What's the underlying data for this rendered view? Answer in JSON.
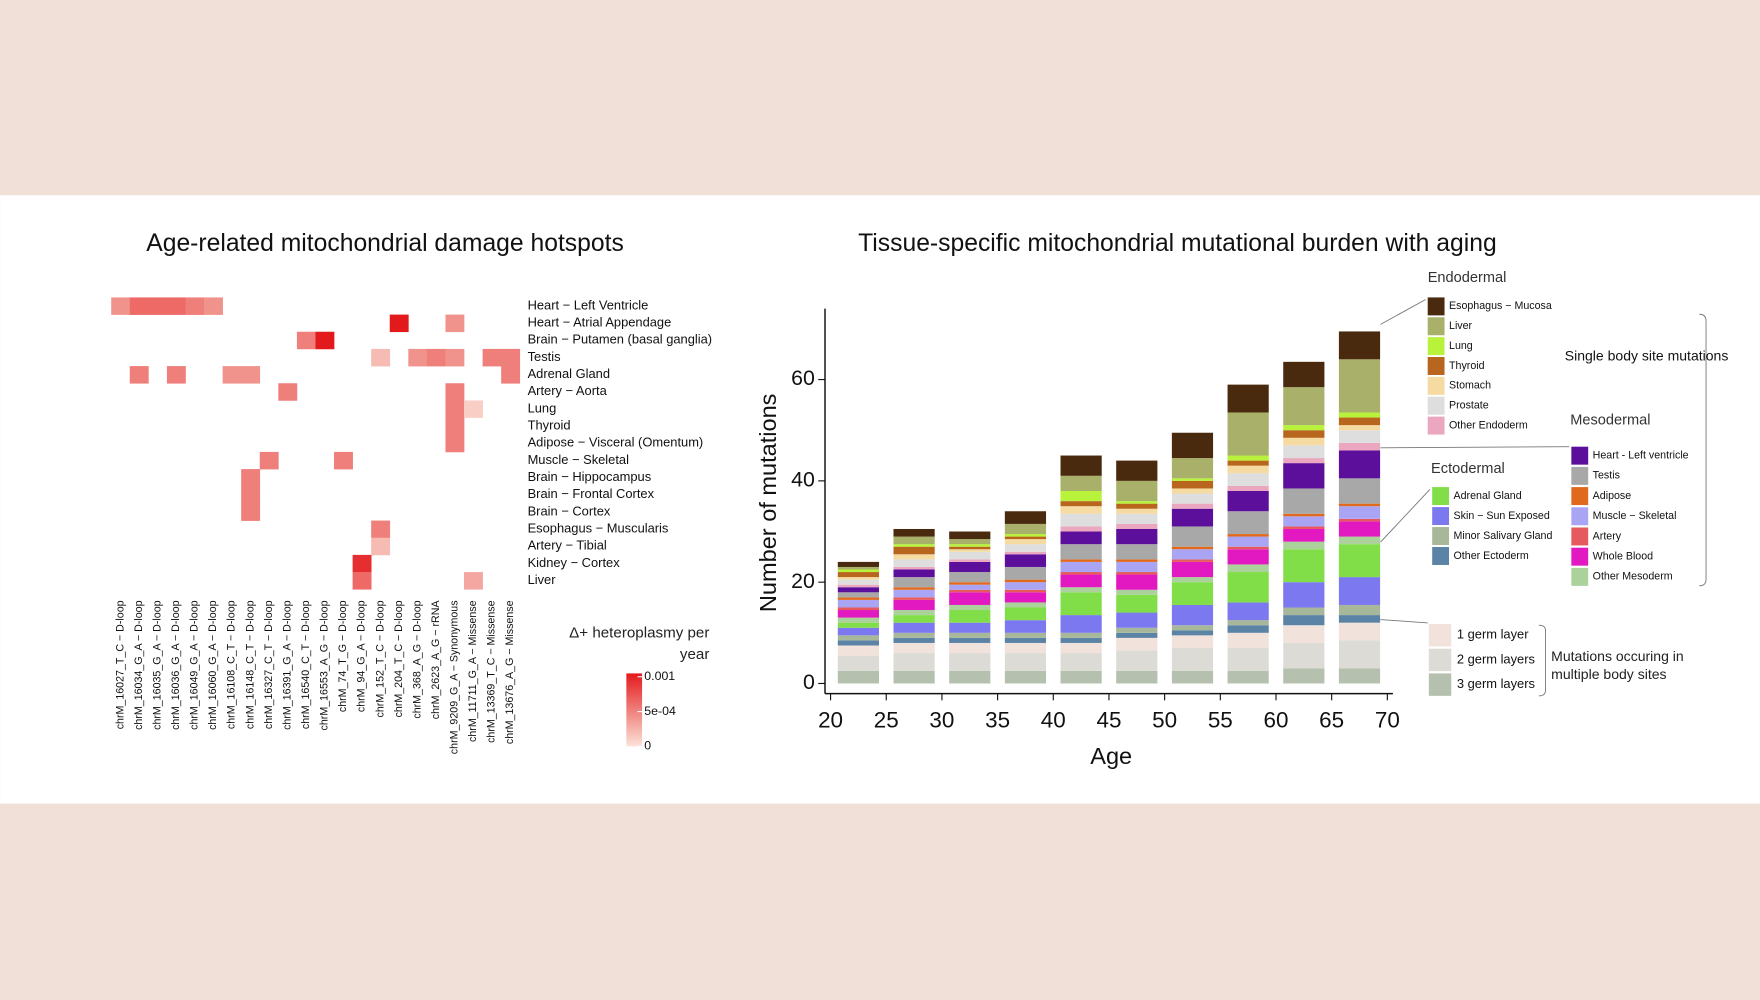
{
  "chart_data": [
    {
      "type": "heatmap",
      "title": "Age-related mitochondrial damage hotspots",
      "rows": [
        "Heart − Left Ventricle",
        "Heart − Atrial Appendage",
        "Brain − Putamen (basal ganglia)",
        "Testis",
        "Adrenal Gland",
        "Artery − Aorta",
        "Lung",
        "Thyroid",
        "Adipose − Visceral (Omentum)",
        "Muscle − Skeletal",
        "Brain − Hippocampus",
        "Brain − Frontal Cortex",
        "Brain − Cortex",
        "Esophagus − Muscularis",
        "Artery − Tibial",
        "Kidney − Cortex",
        "Liver"
      ],
      "columns": [
        "chrM_16027_T_C − D-loop",
        "chrM_16034_G_A − D-loop",
        "chrM_16035_G_A − D-loop",
        "chrM_16036_G_A − D-loop",
        "chrM_16049_G_A − D-loop",
        "chrM_16060_G_A − D-loop",
        "chrM_16108_C_T − D-loop",
        "chrM_16148_C_T − D-loop",
        "chrM_16327_C_T − D-loop",
        "chrM_16391_G_A − D-loop",
        "chrM_16540_C_T − D-loop",
        "chrM_16553_A_G − D-loop",
        "chrM_74_T_G − D-loop",
        "chrM_94_G_A − D-loop",
        "chrM_152_T_C − D-loop",
        "chrM_204_T_C − D-loop",
        "chrM_368_A_G − D-loop",
        "chrM_2623_A_G − rRNA",
        "chrM_9209_G_A − Synonymous",
        "chrM_11711_G_A − Missense",
        "chrM_13369_T_C − Missense",
        "chrM_13676_A_G − Missense"
      ],
      "values": [
        [
          0.0004,
          0.0006,
          0.0006,
          0.0006,
          0.0005,
          0.0004,
          null,
          null,
          null,
          null,
          null,
          null,
          null,
          null,
          null,
          null,
          null,
          null,
          null,
          null,
          null,
          null
        ],
        [
          null,
          null,
          null,
          null,
          null,
          null,
          null,
          null,
          null,
          null,
          null,
          null,
          null,
          null,
          null,
          0.001,
          null,
          null,
          0.0004,
          null,
          null,
          null
        ],
        [
          null,
          null,
          null,
          null,
          null,
          null,
          null,
          null,
          null,
          null,
          0.0005,
          0.001,
          null,
          null,
          null,
          null,
          null,
          null,
          null,
          null,
          null,
          null
        ],
        [
          null,
          null,
          null,
          null,
          null,
          null,
          null,
          null,
          null,
          null,
          null,
          null,
          null,
          null,
          0.0002,
          null,
          0.0004,
          0.0005,
          0.0004,
          null,
          0.0005,
          0.0005
        ],
        [
          null,
          0.0005,
          null,
          0.0005,
          null,
          null,
          0.0004,
          0.0004,
          null,
          null,
          null,
          null,
          null,
          null,
          null,
          null,
          null,
          null,
          null,
          null,
          null,
          0.0005
        ],
        [
          null,
          null,
          null,
          null,
          null,
          null,
          null,
          null,
          null,
          0.0005,
          null,
          null,
          null,
          null,
          null,
          null,
          null,
          null,
          0.0005,
          null,
          null,
          null
        ],
        [
          null,
          null,
          null,
          null,
          null,
          null,
          null,
          null,
          null,
          null,
          null,
          null,
          null,
          null,
          null,
          null,
          null,
          null,
          0.0005,
          0.0001,
          null,
          null
        ],
        [
          null,
          null,
          null,
          null,
          null,
          null,
          null,
          null,
          null,
          null,
          null,
          null,
          null,
          null,
          null,
          null,
          null,
          null,
          0.0005,
          null,
          null,
          null
        ],
        [
          null,
          null,
          null,
          null,
          null,
          null,
          null,
          null,
          null,
          null,
          null,
          null,
          null,
          null,
          null,
          null,
          null,
          null,
          0.0005,
          null,
          null,
          null
        ],
        [
          null,
          null,
          null,
          null,
          null,
          null,
          null,
          null,
          0.0005,
          null,
          null,
          null,
          0.0005,
          null,
          null,
          null,
          null,
          null,
          null,
          null,
          null,
          null
        ],
        [
          null,
          null,
          null,
          null,
          null,
          null,
          null,
          0.0005,
          null,
          null,
          null,
          null,
          null,
          null,
          null,
          null,
          null,
          null,
          null,
          null,
          null,
          null
        ],
        [
          null,
          null,
          null,
          null,
          null,
          null,
          null,
          0.0005,
          null,
          null,
          null,
          null,
          null,
          null,
          null,
          null,
          null,
          null,
          null,
          null,
          null,
          null
        ],
        [
          null,
          null,
          null,
          null,
          null,
          null,
          null,
          0.0005,
          null,
          null,
          null,
          null,
          null,
          null,
          null,
          null,
          null,
          null,
          null,
          null,
          null,
          null
        ],
        [
          null,
          null,
          null,
          null,
          null,
          null,
          null,
          null,
          null,
          null,
          null,
          null,
          null,
          null,
          0.0005,
          null,
          null,
          null,
          null,
          null,
          null,
          null
        ],
        [
          null,
          null,
          null,
          null,
          null,
          null,
          null,
          null,
          null,
          null,
          null,
          null,
          null,
          null,
          0.0002,
          null,
          null,
          null,
          null,
          null,
          null,
          null
        ],
        [
          null,
          null,
          null,
          null,
          null,
          null,
          null,
          null,
          null,
          null,
          null,
          null,
          null,
          0.0009,
          null,
          null,
          null,
          null,
          null,
          null,
          null,
          null
        ],
        [
          null,
          null,
          null,
          null,
          null,
          null,
          null,
          null,
          null,
          null,
          null,
          null,
          null,
          0.0006,
          null,
          null,
          null,
          null,
          null,
          0.0003,
          null,
          null
        ]
      ],
      "colorbar": {
        "title": "Δ+ heteroplasmy per year",
        "zlim": [
          0,
          0.001
        ],
        "zticks": [
          0,
          {
            "value": 0.0005,
            "label": "5e-04"
          },
          0.001
        ],
        "colors": [
          "#fbe3d8",
          "#e31a1c"
        ]
      }
    },
    {
      "type": "stacked_bar",
      "title": "Tissue-specific mitochondrial mutational burden with aging",
      "xlabel": "Age",
      "ylabel": "Number of mutations",
      "bins": [
        20,
        25,
        30,
        35,
        40,
        45,
        50,
        55,
        60,
        65,
        70
      ],
      "xlim": [
        19.5,
        70.5
      ],
      "xticks": [
        20,
        25,
        30,
        35,
        40,
        45,
        50,
        55,
        60,
        65,
        70
      ],
      "ylim": [
        -2,
        74
      ],
      "yticks": [
        0,
        20,
        40,
        60
      ],
      "multi_site": {
        "label": "Mutations occuring in multiple body sites",
        "series": [
          {
            "name": "3 germ layers",
            "color": "#b5c0ae",
            "values": [
              2.5,
              2.5,
              2.5,
              2.5,
              2.5,
              2.5,
              2.5,
              2.5,
              3,
              3
            ]
          },
          {
            "name": "2 germ layers",
            "color": "#dddbd5",
            "values": [
              3,
              3.5,
              3.5,
              3.5,
              3.5,
              4,
              4.5,
              4.5,
              5,
              5.5
            ]
          },
          {
            "name": "1 germ layer",
            "color": "#f1e2dc",
            "values": [
              2,
              2,
              2,
              2,
              2,
              2.5,
              2.5,
              3,
              3.5,
              3.5
            ]
          }
        ]
      },
      "single_site": {
        "label": "Single body site mutations",
        "groups": [
          {
            "name": "Ectodermal",
            "series": [
              {
                "name": "Other Ectoderm",
                "color": "#5b83a6",
                "values": [
                  1,
                  1,
                  1,
                  1,
                  1,
                  1,
                  1,
                  1.5,
                  2,
                  1.5
                ]
              },
              {
                "name": "Minor Salivary Gland",
                "color": "#a6b79a",
                "values": [
                  1,
                  1,
                  1,
                  1,
                  1,
                  1,
                  1,
                  1,
                  1.5,
                  2
                ]
              },
              {
                "name": "Skin − Sun Exposed",
                "color": "#7b78f0",
                "values": [
                  1.5,
                  2,
                  2,
                  2.5,
                  3.5,
                  3,
                  4,
                  3.5,
                  5,
                  5.5
                ]
              },
              {
                "name": "Adrenal Gland",
                "color": "#82de48",
                "values": [
                  1,
                  1.5,
                  2.5,
                  2.5,
                  4.5,
                  3.5,
                  4.5,
                  6,
                  6.5,
                  6.5
                ]
              }
            ]
          },
          {
            "name": "Mesodermal",
            "series": [
              {
                "name": "Other Mesoderm",
                "color": "#abd29a",
                "values": [
                  1,
                  1,
                  1,
                  1,
                  1,
                  1,
                  1,
                  1.5,
                  1.5,
                  1.5
                ]
              },
              {
                "name": "Whole Blood",
                "color": "#e218c0",
                "values": [
                  1.5,
                  2,
                  2.5,
                  2,
                  2.5,
                  3,
                  3,
                  3,
                  2.5,
                  3
                ]
              },
              {
                "name": "Artery",
                "color": "#e65a5e",
                "values": [
                  0.5,
                  0.5,
                  0.5,
                  0.5,
                  0.5,
                  0.5,
                  0.5,
                  0.5,
                  0.5,
                  0.5
                ]
              },
              {
                "name": "Muscle − Skeletal",
                "color": "#aaa4f5",
                "values": [
                  1.5,
                  1.5,
                  1,
                  1.5,
                  2,
                  2,
                  2,
                  2,
                  2,
                  2.5
                ]
              },
              {
                "name": "Adipose",
                "color": "#e0691e",
                "values": [
                  0.5,
                  0.5,
                  0.5,
                  0.5,
                  0.5,
                  0.5,
                  0.5,
                  0.5,
                  0.5,
                  0.5
                ]
              },
              {
                "name": "Testis",
                "color": "#a8a8a8",
                "values": [
                  1,
                  2,
                  2,
                  2.5,
                  3,
                  3,
                  4,
                  4.5,
                  5,
                  5
                ]
              },
              {
                "name": "Heart - Left ventricle",
                "color": "#5c0f9b",
                "values": [
                  1,
                  1.5,
                  2,
                  2.5,
                  2.5,
                  3,
                  3.5,
                  4,
                  5,
                  5.5
                ]
              }
            ]
          },
          {
            "name": "Endodermal",
            "series": [
              {
                "name": "Other Endoderm",
                "color": "#eaa7bf",
                "values": [
                  0.5,
                  0.5,
                  0.5,
                  0.5,
                  1,
                  1,
                  1,
                  1,
                  1,
                  1.5
                ]
              },
              {
                "name": "Prostate",
                "color": "#dedede",
                "values": [
                  1,
                  1.5,
                  1.5,
                  1.5,
                  2.5,
                  2,
                  2,
                  2.5,
                  2.5,
                  2.5
                ]
              },
              {
                "name": "Stomach",
                "color": "#f5dba2",
                "values": [
                  0.5,
                  1,
                  0.5,
                  1,
                  1.5,
                  1,
                  1,
                  1.5,
                  1.5,
                  1
                ]
              },
              {
                "name": "Thyroid",
                "color": "#b8661e",
                "values": [
                  1,
                  1.5,
                  0.5,
                  0.5,
                  1,
                  1,
                  1.5,
                  1,
                  1.5,
                  1.5
                ]
              },
              {
                "name": "Lung",
                "color": "#b8f23a",
                "values": [
                  0.5,
                  0.5,
                  0.5,
                  0.5,
                  2,
                  0.5,
                  0.5,
                  1,
                  1,
                  1
                ]
              },
              {
                "name": "Liver",
                "color": "#a8b06a",
                "values": [
                  0.5,
                  1.5,
                  1,
                  2,
                  3,
                  4,
                  4,
                  8.5,
                  7.5,
                  10.5
                ]
              },
              {
                "name": "Esophagus − Mucosa",
                "color": "#4a2a0e",
                "values": [
                  1,
                  1.5,
                  1.5,
                  2.5,
                  4,
                  4,
                  5,
                  5.5,
                  5,
                  5.5
                ]
              }
            ]
          }
        ]
      }
    }
  ]
}
